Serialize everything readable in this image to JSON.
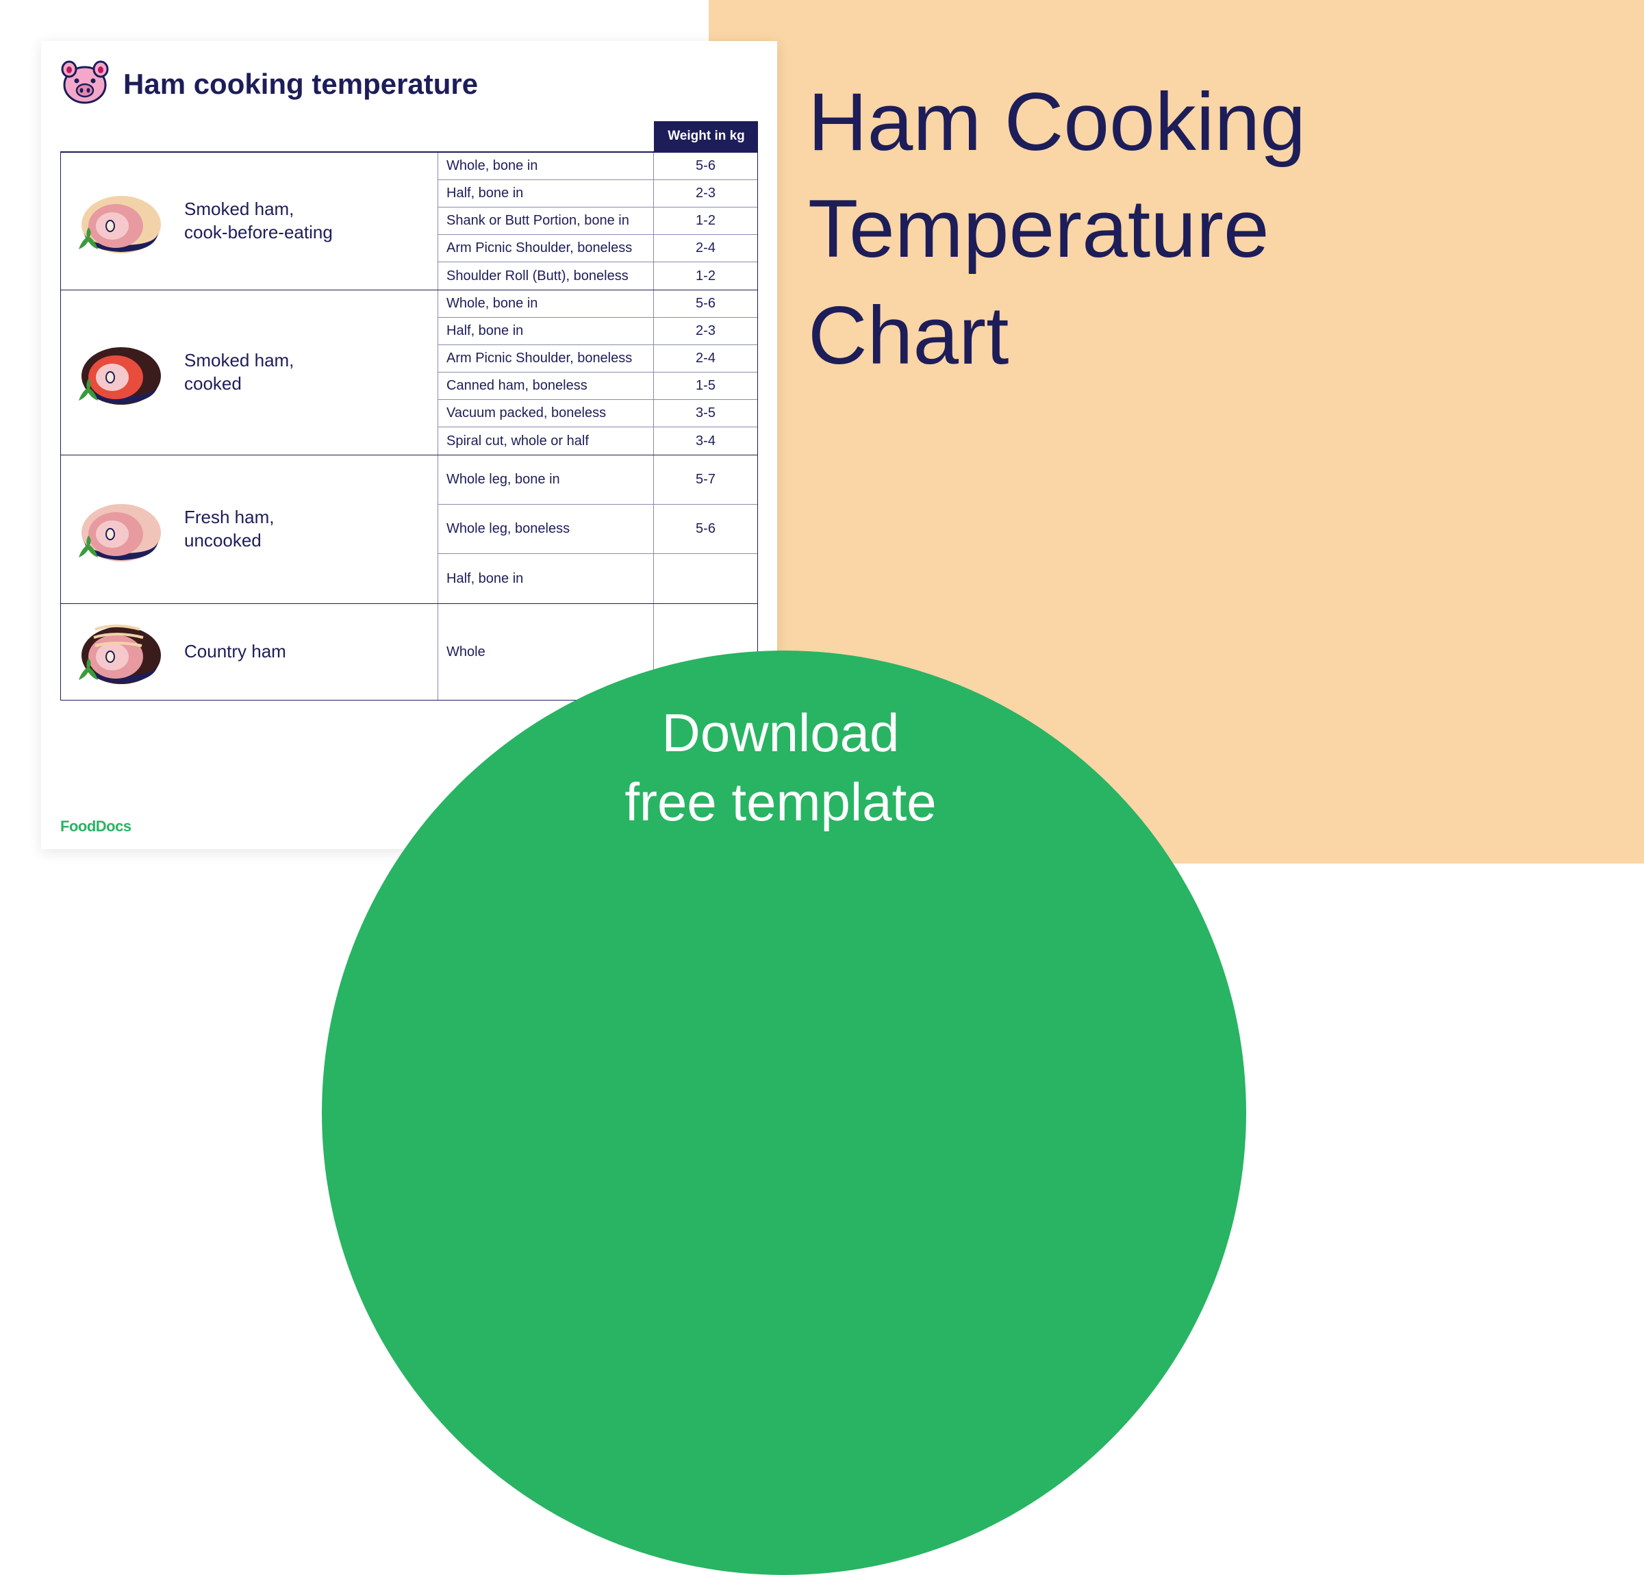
{
  "colors": {
    "peach": "#fad5a5",
    "navy": "#1d1d59",
    "green": "#28b463",
    "white": "#ffffff",
    "pig_pink": "#f4a8c9",
    "pig_dark": "#c2185b",
    "ham_pink": "#e79aa0",
    "ham_red": "#e74c3c",
    "ham_cream": "#f2d3a9",
    "ham_fresh": "#f0c4b8",
    "ham_dark": "#3b1c1c",
    "herb": "#3a9b3a"
  },
  "big_title_line1": "Ham Cooking",
  "big_title_line2": "Temperature",
  "big_title_line3": "Chart",
  "circle_line1": "Download",
  "circle_line2": "free template",
  "doc_title": "Ham cooking temperature",
  "header_weight": "Weight in kg",
  "brand": "FoodDocs",
  "sections": [
    {
      "label": "Smoked ham,\ncook-before-eating",
      "icon": "ham-cream",
      "rows": [
        {
          "cut": "Whole, bone in",
          "weight": "5-6",
          "h": "row"
        },
        {
          "cut": "Half, bone in",
          "weight": "2-3",
          "h": "row"
        },
        {
          "cut": "Shank or Butt Portion, bone in",
          "weight": "1-2",
          "h": "row"
        },
        {
          "cut": "Arm Picnic Shoulder, boneless",
          "weight": "2-4",
          "h": "row"
        },
        {
          "cut": "Shoulder Roll (Butt), boneless",
          "weight": "1-2",
          "h": "row"
        }
      ]
    },
    {
      "label": "Smoked ham,\ncooked",
      "icon": "ham-dark",
      "rows": [
        {
          "cut": "Whole, bone in",
          "weight": "5-6",
          "h": "row"
        },
        {
          "cut": "Half, bone in",
          "weight": "2-3",
          "h": "row"
        },
        {
          "cut": "Arm Picnic Shoulder, boneless",
          "weight": "2-4",
          "h": "row"
        },
        {
          "cut": "Canned ham, boneless",
          "weight": "1-5",
          "h": "row"
        },
        {
          "cut": "Vacuum packed, boneless",
          "weight": "3-5",
          "h": "row"
        },
        {
          "cut": "Spiral cut, whole or half",
          "weight": "3-4",
          "h": "row"
        }
      ]
    },
    {
      "label": "Fresh ham,\nuncooked",
      "icon": "ham-fresh",
      "rows": [
        {
          "cut": "Whole leg, bone in",
          "weight": "5-7",
          "h": "row-tall"
        },
        {
          "cut": "Whole leg, boneless",
          "weight": "5-6",
          "h": "row-tall"
        },
        {
          "cut": "Half, bone in",
          "weight": "",
          "h": "row-tall"
        }
      ]
    },
    {
      "label": "Country ham",
      "icon": "ham-stripe",
      "rows": [
        {
          "cut": "Whole",
          "weight": "",
          "h": "row-vtall"
        }
      ]
    }
  ]
}
